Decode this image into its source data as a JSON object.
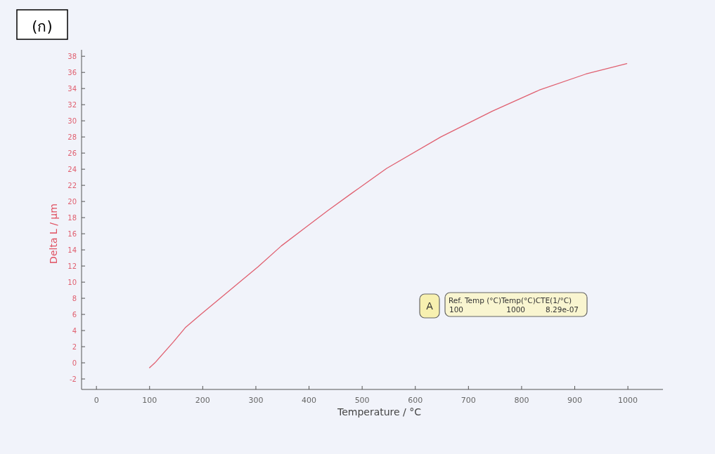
{
  "chart_data": {
    "type": "line",
    "title": "(ก)",
    "xlabel": "Temperature / °C",
    "ylabel": "Delta L / µm",
    "annotations": [
      "A",
      "Ref. Temp  (°C)Temp(°C)CTE(1/°C)",
      "100",
      "1000",
      "8.29e-07"
    ],
    "xlim": [
      -28,
      1066
    ],
    "ylim": [
      -3.3,
      38.8
    ],
    "xticks": [
      0,
      100,
      200,
      300,
      400,
      500,
      600,
      700,
      800,
      900,
      1000
    ],
    "yticks": [
      -2,
      0,
      2,
      4,
      6,
      8,
      10,
      12,
      14,
      16,
      18,
      20,
      22,
      24,
      26,
      28,
      30,
      32,
      34,
      36,
      38
    ],
    "series": [
      {
        "color": "#e06070",
        "x": [
          100,
          110,
          145,
          167,
          198,
          233,
          273,
          304,
          348,
          392,
          436,
          480,
          546,
          648,
          745,
          833,
          921,
          998
        ],
        "values": [
          -0.6,
          0.0,
          2.6,
          4.35,
          6.1,
          8.0,
          10.2,
          11.9,
          14.5,
          16.7,
          18.9,
          21.0,
          24.1,
          28.0,
          31.2,
          33.8,
          35.8,
          37.1
        ]
      }
    ]
  }
}
